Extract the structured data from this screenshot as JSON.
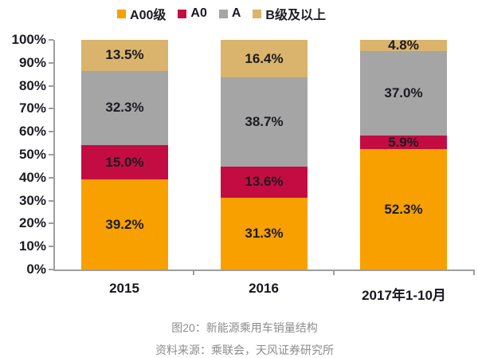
{
  "chart_data": {
    "type": "bar",
    "stacked": true,
    "orientation": "vertical",
    "title": "图20：新能源乘用车销量结构",
    "categories": [
      "2015",
      "2016",
      "2017年1-10月"
    ],
    "y_ticks": [
      "0%",
      "10%",
      "20%",
      "30%",
      "40%",
      "50%",
      "60%",
      "70%",
      "80%",
      "90%",
      "100%"
    ],
    "ylim": [
      0,
      100
    ],
    "grid": false,
    "legend_position": "top",
    "series": [
      {
        "name": "A00级",
        "color": "#F7A000",
        "values": [
          39.2,
          31.3,
          52.3
        ],
        "labels": [
          "39.2%",
          "31.3%",
          "52.3%"
        ]
      },
      {
        "name": "A0",
        "color": "#C30D42",
        "values": [
          15.0,
          13.6,
          5.9
        ],
        "labels": [
          "15.0%",
          "13.6%",
          "5.9%"
        ]
      },
      {
        "name": "A",
        "color": "#A5A5A5",
        "values": [
          32.3,
          38.7,
          37.0
        ],
        "labels": [
          "32.3%",
          "38.7%",
          "37.0%"
        ]
      },
      {
        "name": "B级及以上",
        "color": "#DAB46C",
        "values": [
          13.5,
          16.4,
          4.8
        ],
        "labels": [
          "13.5%",
          "16.4%",
          "4.8%"
        ]
      }
    ]
  },
  "caption": {
    "title": "图20：新能源乘用车销量结构",
    "source": "资料来源：乘联会，天风证券研究所"
  },
  "colors": {
    "axis_line": "#9E9E9E",
    "label_text": "#1B1B22",
    "caption_text": "#8C8C8C",
    "background": "#FFFFFF"
  }
}
